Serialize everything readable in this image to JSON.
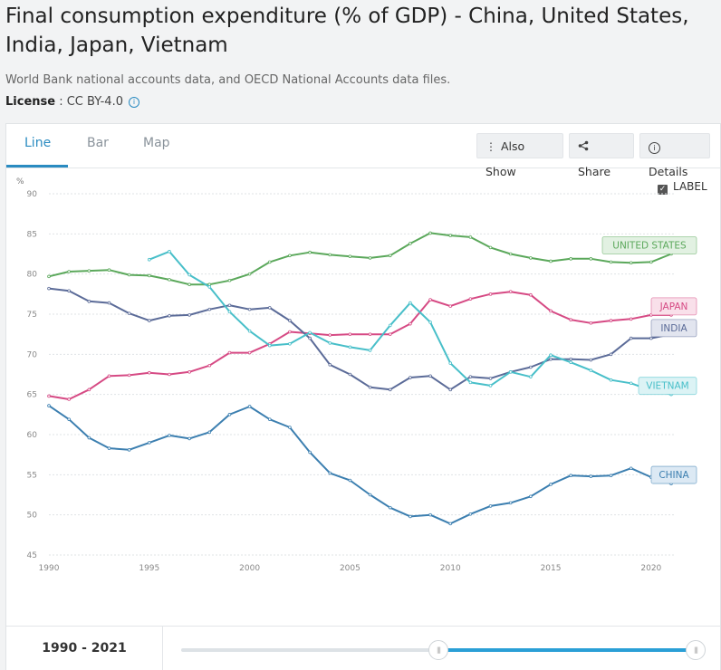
{
  "page": {
    "title": "Final consumption expenditure (% of GDP) - China, United States, India, Japan, Vietnam",
    "source": "World Bank national accounts data, and OECD National Accounts data files.",
    "license_label": "License",
    "license_value": " : CC BY-4.0"
  },
  "tabs": [
    {
      "label": "Line"
    },
    {
      "label": "Bar"
    },
    {
      "label": "Map"
    }
  ],
  "toolbar": {
    "also_show": "Also Show",
    "share": "Share",
    "details": "Details"
  },
  "label_toggle": "LABEL",
  "footer": {
    "range": "1990 - 2021",
    "slider_start_fraction": 0.5,
    "slider_end_fraction": 1.0
  },
  "colors": {
    "accent": "#2a8bc1",
    "china": "#3c7fb0",
    "united_states": "#5ba85b",
    "india": "#5b6b98",
    "japan": "#d64a84",
    "vietnam": "#48bfc9"
  },
  "chart_data": {
    "type": "line",
    "unit": "%",
    "xlim": [
      1990,
      2021
    ],
    "ylim": [
      45,
      90
    ],
    "x_ticks": [
      1990,
      1995,
      2000,
      2005,
      2010,
      2015,
      2020
    ],
    "y_ticks": [
      45,
      50,
      55,
      60,
      65,
      70,
      75,
      80,
      85,
      90
    ],
    "grid": true,
    "series": [
      {
        "name": "UNITED STATES",
        "color": "#5ba85b",
        "label_bg": "#e2f1e2",
        "x": [
          1990,
          1991,
          1992,
          1993,
          1994,
          1995,
          1996,
          1997,
          1998,
          1999,
          2000,
          2001,
          2002,
          2003,
          2004,
          2005,
          2006,
          2007,
          2008,
          2009,
          2010,
          2011,
          2012,
          2013,
          2014,
          2015,
          2016,
          2017,
          2018,
          2019,
          2020,
          2021
        ],
        "values": [
          79.7,
          80.3,
          80.4,
          80.5,
          79.9,
          79.8,
          79.3,
          78.7,
          78.7,
          79.2,
          80.0,
          81.5,
          82.3,
          82.7,
          82.4,
          82.2,
          82.0,
          82.3,
          83.8,
          85.1,
          84.8,
          84.6,
          83.3,
          82.5,
          82.0,
          81.6,
          81.9,
          81.9,
          81.5,
          81.4,
          81.5,
          82.5
        ]
      },
      {
        "name": "JAPAN",
        "color": "#d64a84",
        "label_bg": "#f9e0ea",
        "x": [
          1990,
          1991,
          1992,
          1993,
          1994,
          1995,
          1996,
          1997,
          1998,
          1999,
          2000,
          2001,
          2002,
          2003,
          2004,
          2005,
          2006,
          2007,
          2008,
          2009,
          2010,
          2011,
          2012,
          2013,
          2014,
          2015,
          2016,
          2017,
          2018,
          2019,
          2020,
          2021
        ],
        "values": [
          64.8,
          64.4,
          65.6,
          67.3,
          67.4,
          67.7,
          67.5,
          67.8,
          68.6,
          70.2,
          70.2,
          71.3,
          72.8,
          72.6,
          72.4,
          72.5,
          72.5,
          72.5,
          73.8,
          76.8,
          76.0,
          76.9,
          77.5,
          77.8,
          77.4,
          75.4,
          74.3,
          73.9,
          74.2,
          74.4,
          74.9,
          74.9
        ]
      },
      {
        "name": "INDIA",
        "color": "#5b6b98",
        "label_bg": "#e2e5ef",
        "x": [
          1990,
          1991,
          1992,
          1993,
          1994,
          1995,
          1996,
          1997,
          1998,
          1999,
          2000,
          2001,
          2002,
          2003,
          2004,
          2005,
          2006,
          2007,
          2008,
          2009,
          2010,
          2011,
          2012,
          2013,
          2014,
          2015,
          2016,
          2017,
          2018,
          2019,
          2020,
          2021
        ],
        "values": [
          78.2,
          77.9,
          76.6,
          76.4,
          75.1,
          74.2,
          74.8,
          74.9,
          75.6,
          76.1,
          75.6,
          75.8,
          74.2,
          72.0,
          68.7,
          67.5,
          65.9,
          65.6,
          67.1,
          67.3,
          65.6,
          67.2,
          67.0,
          67.8,
          68.4,
          69.4,
          69.4,
          69.3,
          70.0,
          72.0,
          72.0,
          72.5
        ]
      },
      {
        "name": "VIETNAM",
        "color": "#48bfc9",
        "label_bg": "#dcf3f5",
        "x": [
          1995,
          1996,
          1997,
          1998,
          1999,
          2000,
          2001,
          2002,
          2003,
          2004,
          2005,
          2006,
          2007,
          2008,
          2009,
          2010,
          2011,
          2012,
          2013,
          2014,
          2015,
          2016,
          2017,
          2018,
          2019,
          2020,
          2021
        ],
        "values": [
          81.8,
          82.8,
          79.9,
          78.4,
          75.3,
          72.9,
          71.1,
          71.3,
          72.7,
          71.4,
          70.9,
          70.5,
          73.6,
          76.4,
          74.0,
          68.9,
          66.5,
          66.1,
          67.8,
          67.2,
          69.9,
          69.0,
          68.0,
          66.8,
          66.4,
          65.5,
          65.0
        ]
      },
      {
        "name": "CHINA",
        "color": "#3c7fb0",
        "label_bg": "#dce9f4",
        "x": [
          1990,
          1991,
          1992,
          1993,
          1994,
          1995,
          1996,
          1997,
          1998,
          1999,
          2000,
          2001,
          2002,
          2003,
          2004,
          2005,
          2006,
          2007,
          2008,
          2009,
          2010,
          2011,
          2012,
          2013,
          2014,
          2015,
          2016,
          2017,
          2018,
          2019,
          2020,
          2021
        ],
        "values": [
          63.6,
          61.9,
          59.6,
          58.3,
          58.1,
          59.0,
          59.9,
          59.5,
          60.3,
          62.5,
          63.5,
          61.9,
          60.9,
          57.8,
          55.2,
          54.3,
          52.5,
          50.9,
          49.8,
          50.0,
          48.9,
          50.1,
          51.1,
          51.5,
          52.3,
          53.8,
          54.9,
          54.8,
          54.9,
          55.8,
          54.7,
          53.9
        ]
      }
    ]
  }
}
